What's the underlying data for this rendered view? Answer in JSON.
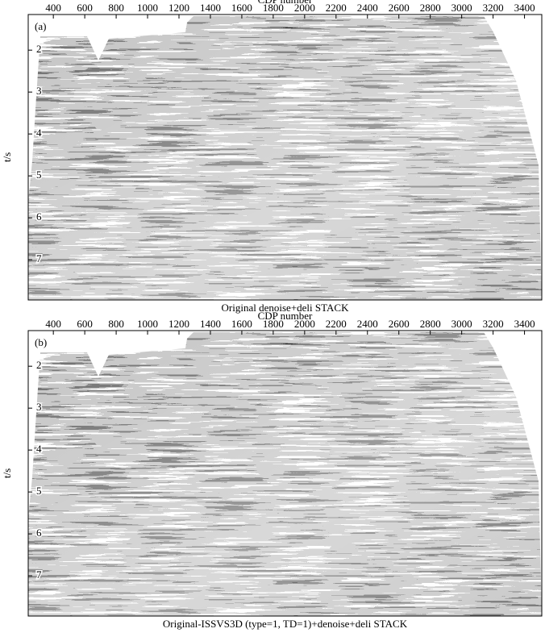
{
  "chart_data": [
    {
      "type": "seismic",
      "panel_label": "(a)",
      "xlabel": "CDP number",
      "ylabel": "t/s",
      "caption": "Original denoise+deli STACK",
      "xlim": [
        240,
        3510
      ],
      "xticks": [
        400,
        600,
        800,
        1000,
        1200,
        1400,
        1600,
        1800,
        2000,
        2200,
        2400,
        2600,
        2800,
        3000,
        3200,
        3400
      ],
      "ylim": [
        1.15,
        7.96
      ],
      "yticks": [
        2,
        3,
        4,
        5,
        6,
        7
      ]
    },
    {
      "type": "seismic",
      "panel_label": "(b)",
      "xlabel": "CDP number",
      "ylabel": "t/s",
      "caption": "Original-ISSVS3D (type=1, TD=1)+denoise+deli STACK",
      "xlim": [
        240,
        3510
      ],
      "xticks": [
        400,
        600,
        800,
        1000,
        1200,
        1400,
        1600,
        1800,
        2000,
        2200,
        2400,
        2600,
        2800,
        3000,
        3200,
        3400
      ],
      "ylim": [
        1.15,
        7.96
      ],
      "yticks": [
        2,
        3,
        4,
        5,
        6,
        7
      ]
    }
  ]
}
